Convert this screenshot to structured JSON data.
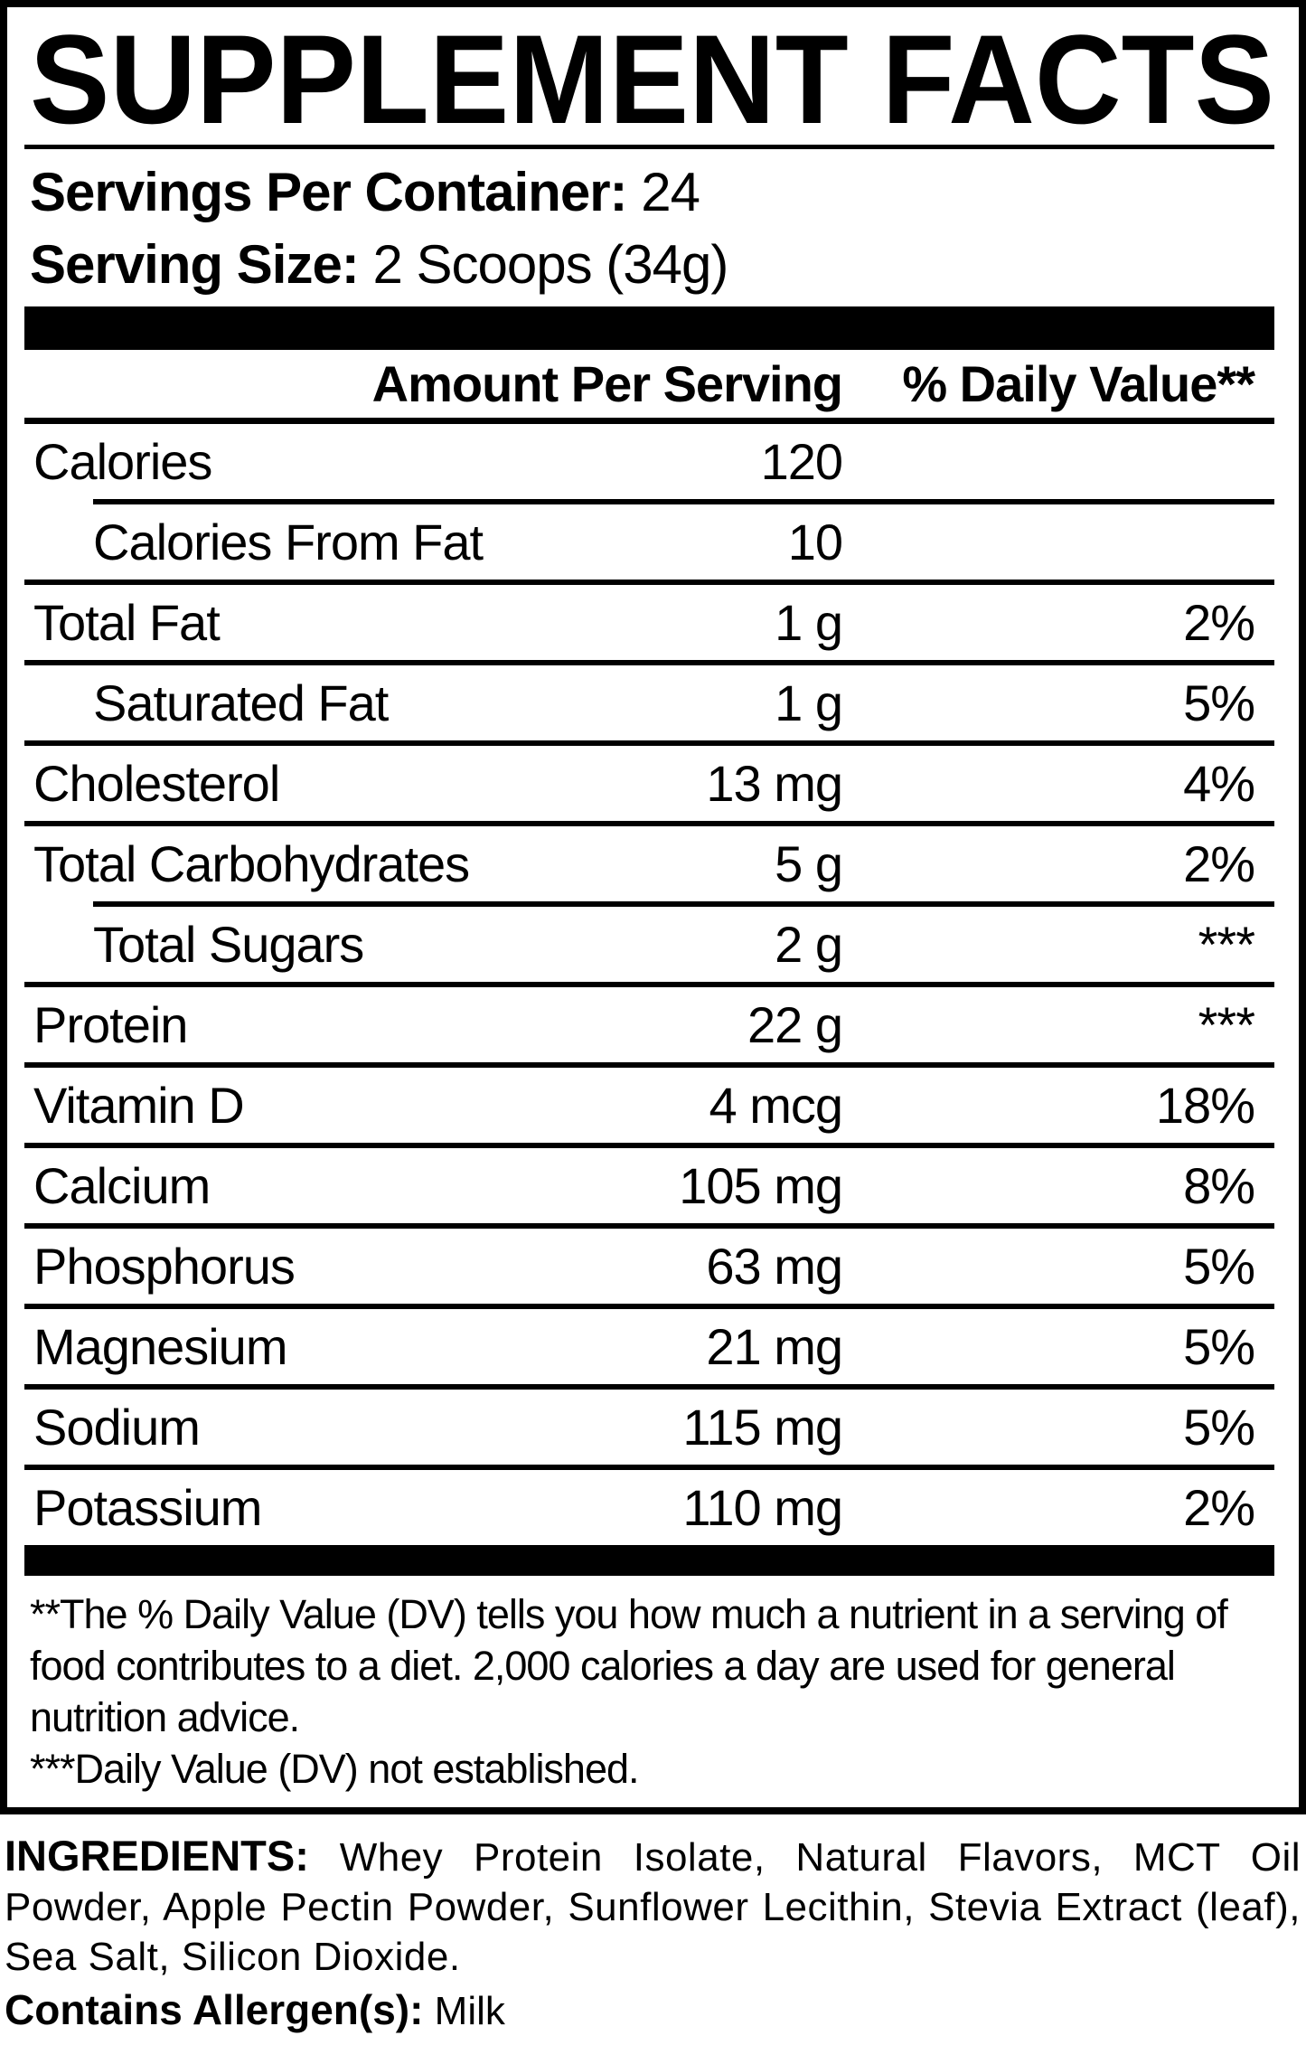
{
  "colors": {
    "ink": "#000000",
    "paper": "#ffffff"
  },
  "panel": {
    "title": "SUPPLEMENT FACTS",
    "servings_per_container": {
      "label": "Servings Per Container:",
      "value": "24"
    },
    "serving_size": {
      "label": "Serving Size:",
      "value": "2 Scoops (34g)"
    },
    "columns": {
      "amount": "Amount Per Serving",
      "daily_value": "% Daily Value**"
    },
    "rows": [
      {
        "label": "Calories",
        "amount": "120",
        "dv": "",
        "indent": false,
        "sep_after": "indent"
      },
      {
        "label": "Calories From Fat",
        "amount": "10",
        "dv": "",
        "indent": true,
        "sep_after": "full"
      },
      {
        "label": "Total Fat",
        "amount": "1 g",
        "dv": "2%",
        "indent": false,
        "sep_after": "full"
      },
      {
        "label": "Saturated Fat",
        "amount": "1 g",
        "dv": "5%",
        "indent": true,
        "sep_after": "full"
      },
      {
        "label": "Cholesterol",
        "amount": "13 mg",
        "dv": "4%",
        "indent": false,
        "sep_after": "full"
      },
      {
        "label": "Total Carbohydrates",
        "amount": "5 g",
        "dv": "2%",
        "indent": false,
        "sep_after": "indent"
      },
      {
        "label": "Total Sugars",
        "amount": "2 g",
        "dv": "***",
        "indent": true,
        "sep_after": "full"
      },
      {
        "label": "Protein",
        "amount": "22 g",
        "dv": "***",
        "indent": false,
        "sep_after": "full"
      },
      {
        "label": "Vitamin D",
        "amount": "4 mcg",
        "dv": "18%",
        "indent": false,
        "sep_after": "full"
      },
      {
        "label": "Calcium",
        "amount": "105 mg",
        "dv": "8%",
        "indent": false,
        "sep_after": "full"
      },
      {
        "label": "Phosphorus",
        "amount": "63 mg",
        "dv": "5%",
        "indent": false,
        "sep_after": "full"
      },
      {
        "label": "Magnesium",
        "amount": "21 mg",
        "dv": "5%",
        "indent": false,
        "sep_after": "full"
      },
      {
        "label": "Sodium",
        "amount": "115 mg",
        "dv": "5%",
        "indent": false,
        "sep_after": "full"
      },
      {
        "label": "Potassium",
        "amount": "110 mg",
        "dv": "2%",
        "indent": false,
        "sep_after": "none"
      }
    ],
    "footnotes": [
      "**The % Daily Value (DV) tells you how much a nutrient in a serving of food contributes to a diet. 2,000 calories a day are used for general nutrition advice.",
      "***Daily Value (DV) not established."
    ]
  },
  "ingredients": {
    "label": "INGREDIENTS:",
    "text": "Whey Protein Isolate, Natural Flavors, MCT Oil Powder, Apple Pectin Powder, Sunflower Lecithin, Stevia Extract (leaf), Sea Salt, Silicon Dioxide.",
    "allergen": {
      "label": "Contains Allergen(s):",
      "value": "Milk"
    }
  }
}
